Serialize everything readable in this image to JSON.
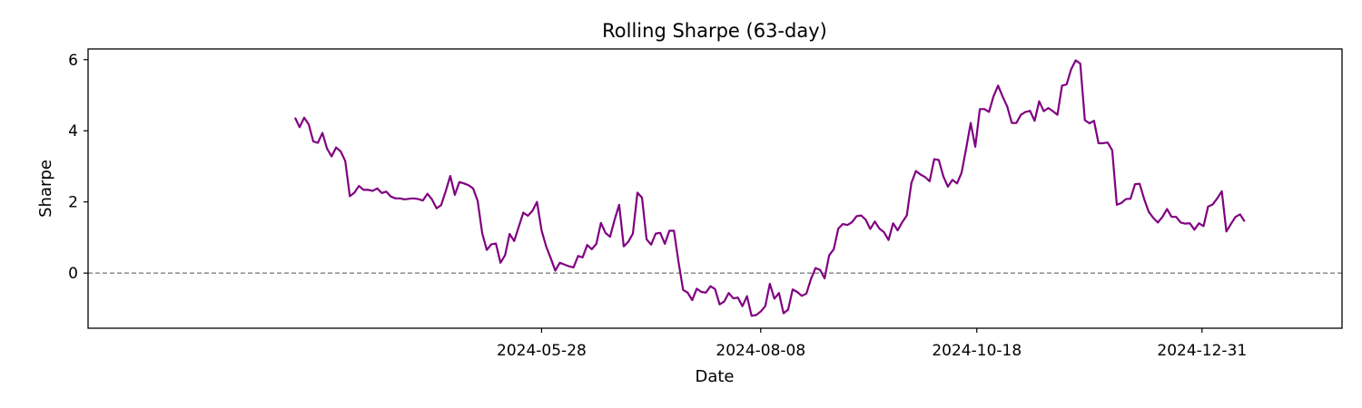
{
  "chart_data": {
    "type": "line",
    "title": "Rolling Sharpe (63-day)",
    "xlabel": "Date",
    "ylabel": "Sharpe",
    "x_start": "2024-03-08",
    "x_step_days": 1.5,
    "x_ticks": [
      "2024-05-28",
      "2024-08-08",
      "2024-10-18",
      "2024-12-31"
    ],
    "xlim": [
      "2023-12-31",
      "2025-02-15"
    ],
    "y_ticks": [
      0,
      2,
      4,
      6
    ],
    "ylim": [
      -1.55,
      6.3
    ],
    "grid": false,
    "reference_line": {
      "y": 0,
      "style": "dashed",
      "color": "#808080"
    },
    "series": [
      {
        "name": "",
        "color": "#800080",
        "values": [
          4.37,
          4.1,
          4.37,
          4.18,
          3.7,
          3.66,
          3.94,
          3.5,
          3.28,
          3.53,
          3.42,
          3.15,
          2.16,
          2.26,
          2.45,
          2.34,
          2.34,
          2.31,
          2.38,
          2.25,
          2.29,
          2.15,
          2.1,
          2.1,
          2.07,
          2.09,
          2.1,
          2.08,
          2.04,
          2.23,
          2.07,
          1.82,
          1.91,
          2.3,
          2.73,
          2.2,
          2.56,
          2.52,
          2.47,
          2.38,
          2.03,
          1.12,
          0.65,
          0.81,
          0.83,
          0.29,
          0.5,
          1.1,
          0.9,
          1.3,
          1.7,
          1.61,
          1.75,
          2.0,
          1.2,
          0.75,
          0.42,
          0.07,
          0.29,
          0.24,
          0.19,
          0.16,
          0.48,
          0.44,
          0.79,
          0.67,
          0.82,
          1.41,
          1.13,
          1.02,
          1.5,
          1.92,
          0.75,
          0.88,
          1.11,
          2.26,
          2.12,
          0.95,
          0.8,
          1.11,
          1.13,
          0.82,
          1.19,
          1.19,
          0.31,
          -0.47,
          -0.55,
          -0.76,
          -0.44,
          -0.53,
          -0.55,
          -0.37,
          -0.45,
          -0.88,
          -0.8,
          -0.56,
          -0.71,
          -0.69,
          -0.93,
          -0.65,
          -1.2,
          -1.18,
          -1.08,
          -0.93,
          -0.3,
          -0.72,
          -0.56,
          -1.13,
          -1.03,
          -0.46,
          -0.53,
          -0.64,
          -0.58,
          -0.17,
          0.14,
          0.09,
          -0.15,
          0.5,
          0.67,
          1.25,
          1.38,
          1.35,
          1.43,
          1.6,
          1.62,
          1.5,
          1.24,
          1.45,
          1.25,
          1.15,
          0.93,
          1.4,
          1.2,
          1.43,
          1.62,
          2.53,
          2.87,
          2.77,
          2.7,
          2.58,
          3.2,
          3.18,
          2.72,
          2.43,
          2.62,
          2.52,
          2.82,
          3.5,
          4.22,
          3.55,
          4.61,
          4.61,
          4.53,
          4.97,
          5.27,
          4.96,
          4.68,
          4.22,
          4.22,
          4.45,
          4.53,
          4.56,
          4.28,
          4.83,
          4.55,
          4.64,
          4.55,
          4.45,
          5.27,
          5.3,
          5.73,
          5.98,
          5.89,
          4.3,
          4.21,
          4.28,
          3.65,
          3.65,
          3.67,
          3.45,
          1.92,
          1.97,
          2.08,
          2.09,
          2.5,
          2.51,
          2.08,
          1.72,
          1.55,
          1.42,
          1.58,
          1.8,
          1.58,
          1.58,
          1.42,
          1.39,
          1.4,
          1.22,
          1.4,
          1.32,
          1.87,
          1.93,
          2.1,
          2.3,
          1.17,
          1.38,
          1.58,
          1.65,
          1.45
        ]
      }
    ]
  }
}
